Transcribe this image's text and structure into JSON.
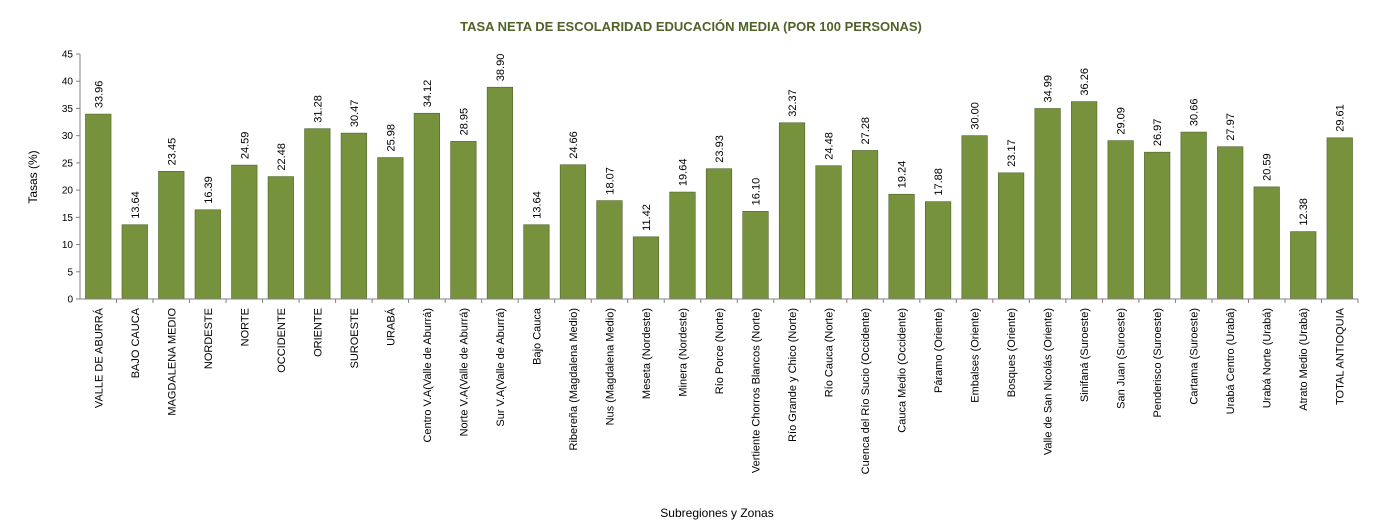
{
  "chart_data": {
    "type": "bar",
    "title": "TASA NETA DE ESCOLARIDAD EDUCACIÓN MEDIA (POR 100 PERSONAS)",
    "xlabel": "Subregiones y Zonas",
    "ylabel": "Tasas (%)",
    "ylim": [
      0,
      45
    ],
    "yticks": [
      "0",
      "5",
      "10",
      "15",
      "20",
      "25",
      "30",
      "35",
      "40",
      "45"
    ],
    "grid": false,
    "categories": [
      "VALLE DE ABURRÁ",
      "BAJO CAUCA",
      "MAGDALENA MEDIO",
      "NORDESTE",
      "NORTE",
      "OCCIDENTE",
      "ORIENTE",
      "SUROESTE",
      "URABÁ",
      "Centro V.A(Valle de Aburrá)",
      "Norte V.A(Valle de Aburrá)",
      "Sur V.A(Valle de Aburrá)",
      "Bajo Cauca",
      "Ribereña  (Magdalena Medio)",
      "Nus  (Magdalena Medio)",
      "Meseta  (Nordeste)",
      "Minera  (Nordeste)",
      "Río Porce   (Norte)",
      "Vertiente Chorros Blancos  (Norte)",
      "Río Grande y Chico  (Norte)",
      "Río Cauca  (Norte)",
      "Cuenca del Río Sucio  (Occidente)",
      "Cauca Medio  (Occidente)",
      "Páramo  (Oriente)",
      "Embalses  (Oriente)",
      "Bosques  (Oriente)",
      "Valle de San Nicolás  (Oriente)",
      "Sinifaná  (Suroeste)",
      "San Juan  (Suroeste)",
      "Penderisco  (Suroeste)",
      "Cartama  (Suroeste)",
      "Urabá Centro  (Urabá)",
      "Urabá Norte  (Urabá)",
      "Atrato Medio  (Urabá)",
      "TOTAL ANTIOQUIA"
    ],
    "values": [
      33.96,
      13.64,
      23.45,
      16.39,
      24.59,
      22.48,
      31.28,
      30.47,
      25.98,
      34.12,
      28.95,
      38.9,
      13.64,
      24.66,
      18.07,
      11.42,
      19.64,
      23.93,
      16.1,
      32.37,
      24.48,
      27.28,
      19.24,
      17.88,
      30.0,
      23.17,
      34.99,
      36.26,
      29.09,
      26.97,
      30.66,
      27.97,
      20.59,
      12.38,
      29.61
    ],
    "value_labels": [
      "33.96",
      "13.64",
      "23.45",
      "16.39",
      "24.59",
      "22.48",
      "31.28",
      "30.47",
      "25.98",
      "34.12",
      "28.95",
      "38.90",
      "13.64",
      "24.66",
      "18.07",
      "11.42",
      "19.64",
      "23.93",
      "16.10",
      "32.37",
      "24.48",
      "27.28",
      "19.24",
      "17.88",
      "30.00",
      "23.17",
      "34.99",
      "36.26",
      "29.09",
      "26.97",
      "30.66",
      "27.97",
      "20.59",
      "12.38",
      "29.61"
    ],
    "colors": {
      "bar": "#76923C",
      "bar_edge": "#4F6228",
      "title": "#4F6228",
      "axis": "#808080"
    }
  }
}
